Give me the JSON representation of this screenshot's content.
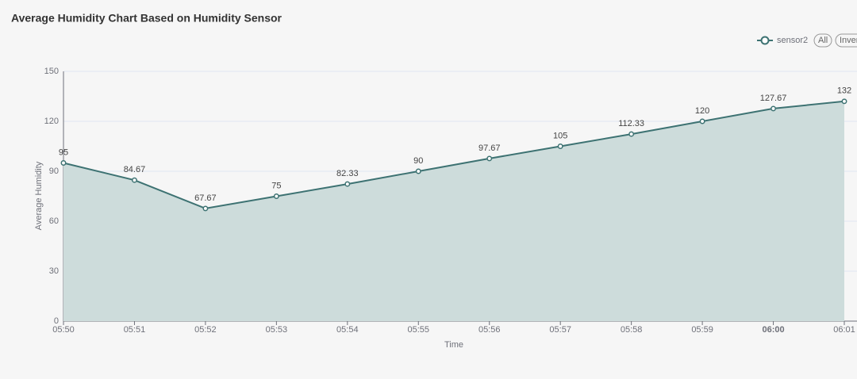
{
  "chart_data": {
    "type": "line",
    "area": true,
    "title": "Average Humidity Chart Based on Humidity Sensor",
    "x_label": "Time",
    "y_label": "Average Humidity",
    "categories": [
      "05:50",
      "05:51",
      "05:52",
      "05:53",
      "05:54",
      "05:55",
      "05:56",
      "05:57",
      "05:58",
      "05:59",
      "06:00",
      "06:01"
    ],
    "series": [
      {
        "name": "sensor2",
        "color": "#3d7272",
        "area_color": "#cddcdb",
        "values": [
          95,
          84.67,
          67.67,
          75,
          82.33,
          90,
          97.67,
          105,
          112.33,
          120,
          127.67,
          132
        ]
      }
    ],
    "ylim": [
      0,
      150
    ],
    "yticks": [
      0,
      30,
      60,
      90,
      120,
      150
    ],
    "grid": true,
    "legend": "top-right",
    "legend_buttons": [
      "All",
      "Inverse"
    ]
  }
}
